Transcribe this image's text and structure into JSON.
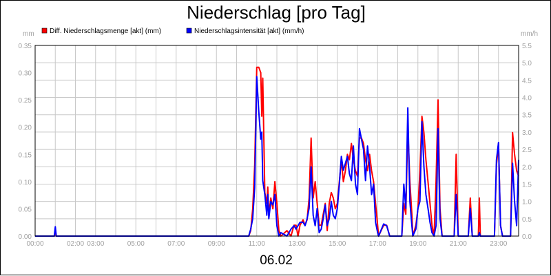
{
  "chart_data": {
    "type": "line",
    "title": "Niederschlag [pro Tag]",
    "xlabel": "06.02",
    "y_left_unit": "mm",
    "y_right_unit": "mm/h",
    "y_left_lim": [
      0,
      0.35
    ],
    "y_right_lim": [
      0,
      5.5
    ],
    "y_left_ticks": [
      "0.00",
      "0.05",
      "0.10",
      "0.15",
      "0.20",
      "0.25",
      "0.30",
      "0.35"
    ],
    "y_right_ticks": [
      "0.0",
      "0.5",
      "1.0",
      "1.5",
      "2.0",
      "2.5",
      "3.0",
      "3.5",
      "4.0",
      "4.5",
      "5.0",
      "5.5"
    ],
    "x_lim_hours": [
      0,
      24
    ],
    "x_ticks": [
      {
        "h": 0,
        "label": "00:00"
      },
      {
        "h": 2,
        "label": "02:00"
      },
      {
        "h": 3,
        "label": "03:00"
      },
      {
        "h": 5,
        "label": "05:00"
      },
      {
        "h": 7,
        "label": "07:00"
      },
      {
        "h": 9,
        "label": "09:00"
      },
      {
        "h": 11,
        "label": "11:00"
      },
      {
        "h": 13,
        "label": "13:00"
      },
      {
        "h": 15,
        "label": "15:00"
      },
      {
        "h": 17,
        "label": "17:00"
      },
      {
        "h": 19,
        "label": "19:00"
      },
      {
        "h": 21,
        "label": "21:00"
      },
      {
        "h": 23,
        "label": "23:00"
      }
    ],
    "grid": true,
    "legend_position": "top-left",
    "series": [
      {
        "name": "Diff. Niederschlagsmenge [akt] (mm)",
        "axis": "left",
        "color": "#ff0000",
        "points": [
          [
            0,
            0
          ],
          [
            0.95,
            0
          ],
          [
            1.0,
            0.01
          ],
          [
            1.05,
            0
          ],
          [
            10.6,
            0
          ],
          [
            10.7,
            0.01
          ],
          [
            10.8,
            0.05
          ],
          [
            10.9,
            0.13
          ],
          [
            11.0,
            0.31
          ],
          [
            11.1,
            0.31
          ],
          [
            11.2,
            0.3
          ],
          [
            11.25,
            0.22
          ],
          [
            11.3,
            0.29
          ],
          [
            11.4,
            0.08
          ],
          [
            11.5,
            0.06
          ],
          [
            11.55,
            0.09
          ],
          [
            11.6,
            0.04
          ],
          [
            11.7,
            0.07
          ],
          [
            11.8,
            0.05
          ],
          [
            11.9,
            0.1
          ],
          [
            12.0,
            0.06
          ],
          [
            12.1,
            0.01
          ],
          [
            12.2,
            0.0
          ],
          [
            12.5,
            0.01
          ],
          [
            12.7,
            0.0
          ],
          [
            12.85,
            0.02
          ],
          [
            12.95,
            0.02
          ],
          [
            13.05,
            0.0
          ],
          [
            13.15,
            0.02
          ],
          [
            13.3,
            0.03
          ],
          [
            13.4,
            0.02
          ],
          [
            13.5,
            0.03
          ],
          [
            13.6,
            0.07
          ],
          [
            13.7,
            0.18
          ],
          [
            13.8,
            0.07
          ],
          [
            13.9,
            0.1
          ],
          [
            14.0,
            0.06
          ],
          [
            14.1,
            0.02
          ],
          [
            14.2,
            0.02
          ],
          [
            14.3,
            0.04
          ],
          [
            14.4,
            0.06
          ],
          [
            14.5,
            0.01
          ],
          [
            14.6,
            0.06
          ],
          [
            14.7,
            0.08
          ],
          [
            14.8,
            0.07
          ],
          [
            14.9,
            0.05
          ],
          [
            15.0,
            0.06
          ],
          [
            15.1,
            0.1
          ],
          [
            15.2,
            0.14
          ],
          [
            15.3,
            0.1
          ],
          [
            15.4,
            0.12
          ],
          [
            15.5,
            0.15
          ],
          [
            15.6,
            0.14
          ],
          [
            15.7,
            0.17
          ],
          [
            15.8,
            0.14
          ],
          [
            15.9,
            0.12
          ],
          [
            16.0,
            0.11
          ],
          [
            16.1,
            0.18
          ],
          [
            16.2,
            0.18
          ],
          [
            16.3,
            0.17
          ],
          [
            16.4,
            0.14
          ],
          [
            16.5,
            0.12
          ],
          [
            16.6,
            0.15
          ],
          [
            16.7,
            0.12
          ],
          [
            16.8,
            0.1
          ],
          [
            16.9,
            0.06
          ],
          [
            17.0,
            0.02
          ],
          [
            17.05,
            0.0
          ],
          [
            17.3,
            0.02
          ],
          [
            17.45,
            0.02
          ],
          [
            17.6,
            0.0
          ],
          [
            18.2,
            0.0
          ],
          [
            18.3,
            0.06
          ],
          [
            18.4,
            0.04
          ],
          [
            18.5,
            0.2
          ],
          [
            18.6,
            0.1
          ],
          [
            18.7,
            0.04
          ],
          [
            18.75,
            0.0
          ],
          [
            18.9,
            0.02
          ],
          [
            19.0,
            0.05
          ],
          [
            19.1,
            0.12
          ],
          [
            19.2,
            0.22
          ],
          [
            19.3,
            0.19
          ],
          [
            19.4,
            0.14
          ],
          [
            19.5,
            0.1
          ],
          [
            19.6,
            0.06
          ],
          [
            19.7,
            0.02
          ],
          [
            19.8,
            0.0
          ],
          [
            19.9,
            0.1
          ],
          [
            20.0,
            0.25
          ],
          [
            20.1,
            0.05
          ],
          [
            20.2,
            0.0
          ],
          [
            20.8,
            0.0
          ],
          [
            20.9,
            0.15
          ],
          [
            21.0,
            0.0
          ],
          [
            21.5,
            0.0
          ],
          [
            21.6,
            0.07
          ],
          [
            21.7,
            0.0
          ],
          [
            22.0,
            0.0
          ],
          [
            22.05,
            0.07
          ],
          [
            22.1,
            0.0
          ],
          [
            22.8,
            0.0
          ],
          [
            22.9,
            0.13
          ],
          [
            23.0,
            0.17
          ],
          [
            23.1,
            0.02
          ],
          [
            23.2,
            0.0
          ],
          [
            23.6,
            0.0
          ],
          [
            23.7,
            0.19
          ],
          [
            23.8,
            0.15
          ],
          [
            23.9,
            0.12
          ],
          [
            24.0,
            0.11
          ]
        ]
      },
      {
        "name": "Niederschlagsintensität [akt] (mm/h)",
        "axis": "right",
        "color": "#0000ff",
        "points": [
          [
            0,
            0
          ],
          [
            0.95,
            0
          ],
          [
            1.0,
            0.27
          ],
          [
            1.05,
            0
          ],
          [
            10.6,
            0
          ],
          [
            10.7,
            0.2
          ],
          [
            10.8,
            0.5
          ],
          [
            10.9,
            1.4
          ],
          [
            11.0,
            4.6
          ],
          [
            11.1,
            3.6
          ],
          [
            11.2,
            2.8
          ],
          [
            11.25,
            3.0
          ],
          [
            11.3,
            1.6
          ],
          [
            11.4,
            1.2
          ],
          [
            11.5,
            0.6
          ],
          [
            11.55,
            1.2
          ],
          [
            11.6,
            0.5
          ],
          [
            11.7,
            1.0
          ],
          [
            11.8,
            0.9
          ],
          [
            11.9,
            1.2
          ],
          [
            12.0,
            0.3
          ],
          [
            12.1,
            0.0
          ],
          [
            12.2,
            0.1
          ],
          [
            12.5,
            0.0
          ],
          [
            12.7,
            0.2
          ],
          [
            12.85,
            0.3
          ],
          [
            12.95,
            0.2
          ],
          [
            13.05,
            0.3
          ],
          [
            13.15,
            0.4
          ],
          [
            13.3,
            0.4
          ],
          [
            13.4,
            0.3
          ],
          [
            13.5,
            0.5
          ],
          [
            13.6,
            0.8
          ],
          [
            13.7,
            2.0
          ],
          [
            13.8,
            0.6
          ],
          [
            13.9,
            0.3
          ],
          [
            14.0,
            0.8
          ],
          [
            14.1,
            0.1
          ],
          [
            14.2,
            0.2
          ],
          [
            14.3,
            0.5
          ],
          [
            14.4,
            0.9
          ],
          [
            14.5,
            0.3
          ],
          [
            14.6,
            0.5
          ],
          [
            14.7,
            1.0
          ],
          [
            14.8,
            0.6
          ],
          [
            14.9,
            0.5
          ],
          [
            15.0,
            0.8
          ],
          [
            15.1,
            1.5
          ],
          [
            15.2,
            2.3
          ],
          [
            15.3,
            1.9
          ],
          [
            15.4,
            2.1
          ],
          [
            15.5,
            2.3
          ],
          [
            15.6,
            1.8
          ],
          [
            15.7,
            1.6
          ],
          [
            15.8,
            2.6
          ],
          [
            15.9,
            1.5
          ],
          [
            16.0,
            1.2
          ],
          [
            16.1,
            3.1
          ],
          [
            16.2,
            2.8
          ],
          [
            16.3,
            2.5
          ],
          [
            16.4,
            1.6
          ],
          [
            16.5,
            2.6
          ],
          [
            16.6,
            2.0
          ],
          [
            16.7,
            1.2
          ],
          [
            16.8,
            1.5
          ],
          [
            16.9,
            0.4
          ],
          [
            17.0,
            0.1
          ],
          [
            17.05,
            0.0
          ],
          [
            17.3,
            0.35
          ],
          [
            17.45,
            0.3
          ],
          [
            17.6,
            0.0
          ],
          [
            18.2,
            0.0
          ],
          [
            18.3,
            1.5
          ],
          [
            18.4,
            0.8
          ],
          [
            18.5,
            3.7
          ],
          [
            18.6,
            1.0
          ],
          [
            18.7,
            0.3
          ],
          [
            18.75,
            0.0
          ],
          [
            18.9,
            0.2
          ],
          [
            19.0,
            0.8
          ],
          [
            19.1,
            1.0
          ],
          [
            19.2,
            3.3
          ],
          [
            19.3,
            2.0
          ],
          [
            19.4,
            1.2
          ],
          [
            19.5,
            0.8
          ],
          [
            19.6,
            0.4
          ],
          [
            19.7,
            0.1
          ],
          [
            19.8,
            0.0
          ],
          [
            19.9,
            0.3
          ],
          [
            20.0,
            3.1
          ],
          [
            20.1,
            0.5
          ],
          [
            20.2,
            0.0
          ],
          [
            20.8,
            0.0
          ],
          [
            20.9,
            1.2
          ],
          [
            21.0,
            0.0
          ],
          [
            21.5,
            0.0
          ],
          [
            21.6,
            0.8
          ],
          [
            21.7,
            0.0
          ],
          [
            22.0,
            0.0
          ],
          [
            22.05,
            0.1
          ],
          [
            22.1,
            0.0
          ],
          [
            22.8,
            0.0
          ],
          [
            22.9,
            2.2
          ],
          [
            23.0,
            2.7
          ],
          [
            23.1,
            0.3
          ],
          [
            23.2,
            0.0
          ],
          [
            23.6,
            0.0
          ],
          [
            23.7,
            2.1
          ],
          [
            23.8,
            1.0
          ],
          [
            23.9,
            0.3
          ],
          [
            24.0,
            2.2
          ]
        ]
      }
    ]
  },
  "colors": {
    "grid": "#c8c8c8",
    "axis": "#000000",
    "tick_text": "#a0a0a0"
  }
}
